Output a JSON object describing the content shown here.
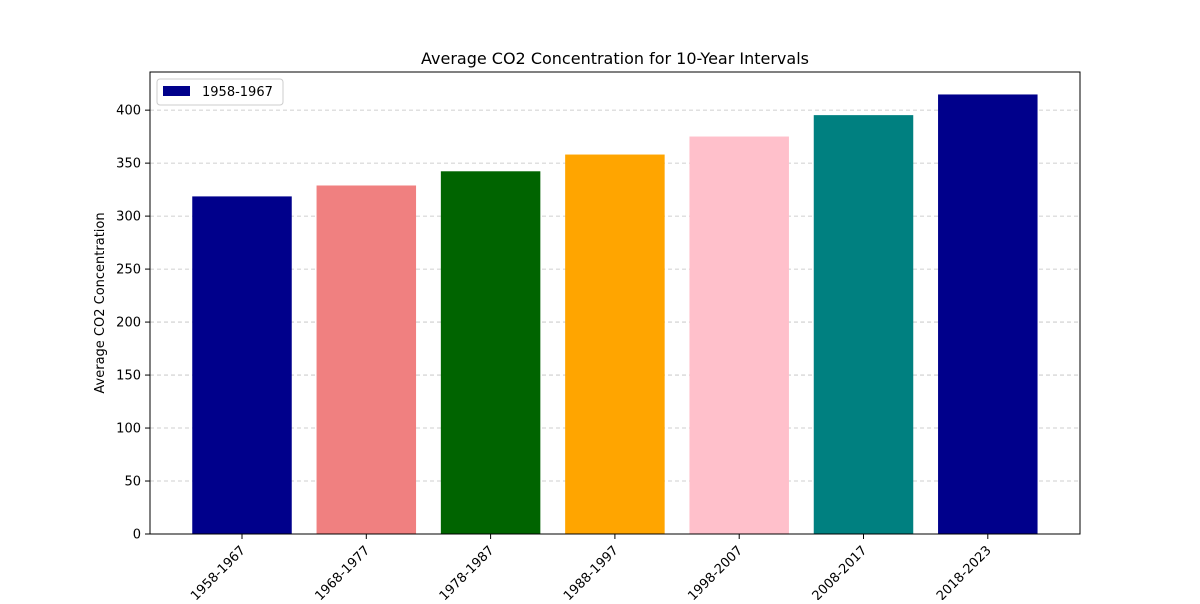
{
  "chart_data": {
    "type": "bar",
    "title": "Average CO2 Concentration for 10-Year Intervals",
    "xlabel": "",
    "ylabel": "Average CO2 Concentration",
    "categories": [
      "1958-1967",
      "1968-1977",
      "1978-1987",
      "1988-1997",
      "1998-2007",
      "2008-2017",
      "2018-2023"
    ],
    "values": [
      318.6,
      328.9,
      342.3,
      358.1,
      375.1,
      395.3,
      414.8
    ],
    "colors": [
      "#00008b",
      "#f08080",
      "#006400",
      "#ffa500",
      "#ffc0cb",
      "#008080",
      "#00008b"
    ],
    "ylim": [
      0,
      436
    ],
    "yticks": [
      0,
      50,
      100,
      150,
      200,
      250,
      300,
      350,
      400
    ],
    "grid": true,
    "grid_axis": "y",
    "legend": {
      "placement": "top-left",
      "entries": [
        {
          "label": "1958-1967",
          "color": "#00008b"
        }
      ]
    }
  }
}
